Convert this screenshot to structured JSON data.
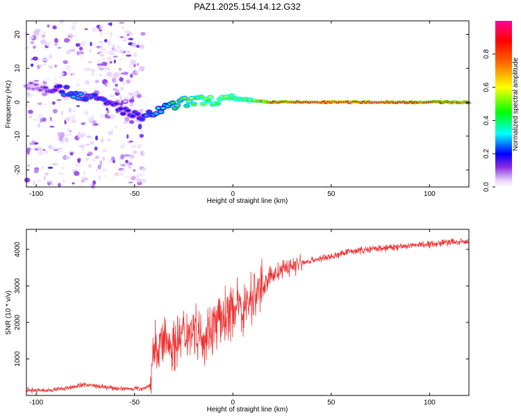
{
  "figure": {
    "title": "PAZ1.2025.154.14.12.G32"
  },
  "chart_data": [
    {
      "type": "heatmap",
      "xlabel": "Height of straight line (km)",
      "ylabel": "Frequency (Hz)",
      "xlim": [
        -105,
        120
      ],
      "ylim": [
        -25,
        24
      ],
      "xticks": [
        -100,
        -50,
        0,
        50,
        100
      ],
      "yticks": [
        -20,
        -10,
        0,
        10,
        20
      ],
      "colormap": [
        "#ffffff",
        "#ff00ff",
        "#6a00ff",
        "#0000ff",
        "#00ffff",
        "#00ff00",
        "#ffff00",
        "#ff0000"
      ],
      "ridge": {
        "x": [
          -100,
          -90,
          -80,
          -70,
          -60,
          -50,
          -45,
          -40,
          -35,
          -30,
          -25,
          -20,
          -10,
          0,
          10,
          20,
          50,
          80,
          100,
          120
        ],
        "freq": [
          5,
          4,
          2.5,
          1,
          -1,
          -4,
          -5,
          -3,
          -2,
          -1,
          0,
          0.5,
          0.5,
          1,
          0.5,
          0,
          0,
          0,
          0,
          0
        ],
        "amplitude": [
          0.1,
          0.2,
          0.3,
          0.25,
          0.2,
          0.2,
          0.25,
          0.3,
          0.35,
          0.45,
          0.5,
          0.55,
          0.6,
          0.6,
          0.6,
          0.9,
          1.0,
          0.95,
          0.9,
          0.85
        ]
      },
      "grid": false
    },
    {
      "type": "line",
      "xlabel": "Height of straight line (km)",
      "ylabel": "SNR (10 * v/v)",
      "xlim": [
        -105,
        120
      ],
      "ylim": [
        0,
        4550
      ],
      "xticks": [
        -100,
        -50,
        0,
        50,
        100
      ],
      "yticks": [
        1000,
        2000,
        3000,
        4000
      ],
      "color": "#ee3333",
      "x": [
        -105,
        -95,
        -85,
        -75,
        -65,
        -55,
        -45,
        -42,
        -40,
        -35,
        -30,
        -25,
        -20,
        -15,
        -10,
        -5,
        0,
        5,
        10,
        15,
        20,
        30,
        40,
        50,
        60,
        70,
        80,
        90,
        100,
        110,
        120
      ],
      "y": [
        150,
        130,
        200,
        300,
        220,
        180,
        200,
        300,
        1200,
        1500,
        1400,
        1700,
        1900,
        1600,
        1900,
        2100,
        2400,
        2400,
        2700,
        3000,
        3300,
        3550,
        3700,
        3800,
        3950,
        4000,
        4050,
        4100,
        4150,
        4200,
        4200
      ],
      "grid": false
    },
    {
      "type": "colorbar",
      "label": "Normalized spectral amplitude",
      "range": [
        0,
        1
      ],
      "ticks": [
        "0.0",
        "0.2",
        "0.4",
        "0.6",
        "0.8"
      ],
      "tick_values": [
        0,
        0.2,
        0.4,
        0.6,
        0.8
      ]
    }
  ]
}
